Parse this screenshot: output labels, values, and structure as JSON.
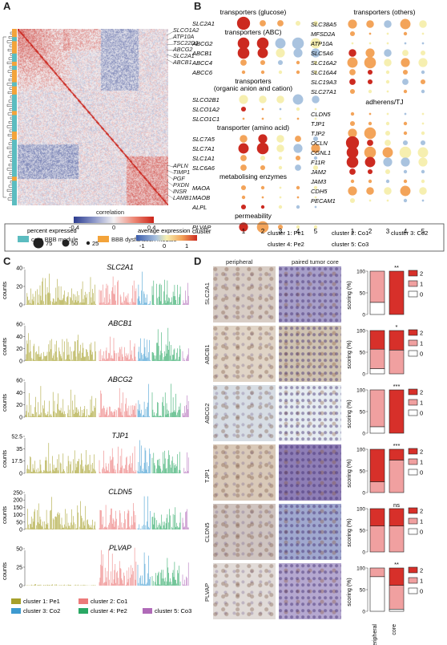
{
  "panels": {
    "a": "A",
    "b": "B",
    "c": "C",
    "d": "D"
  },
  "heatmap": {
    "top_genes": [
      "SLCO1A2",
      "ATP10A",
      "TSC22D1",
      "ABCG2",
      "SLC2A1",
      "ABCB1"
    ],
    "bottom_genes": [
      "APLN",
      "TIMP1",
      "PGF",
      "PXDN",
      "INSR",
      "LAMB1"
    ],
    "colorbar_title": "correlation",
    "colorbar_ticks": [
      "-0.4",
      "0",
      "0.4"
    ],
    "modules": [
      {
        "label": "core BBB module",
        "color": "#5bbcc0"
      },
      {
        "label": "BBB dysfunction module",
        "color": "#f3a33a"
      }
    ]
  },
  "dotplot": {
    "clusters_axis_label": "cluster",
    "cluster_numbers": [
      "1",
      "2",
      "3",
      "4",
      "5"
    ],
    "left_groups": [
      {
        "title": "transporters (glucose)",
        "genes": [
          "SLC2A1"
        ]
      },
      {
        "title": "transporters (ABC)",
        "genes": [
          "ABCG2",
          "ABCB1",
          "ABCC4",
          "ABCC6"
        ]
      },
      {
        "title": "transporters\n(organic anion and cation)",
        "genes": [
          "SLCO2B1",
          "SLCO1A2",
          "SLCO1C1"
        ]
      },
      {
        "title": "transporter (amino acid)",
        "genes": [
          "SLC7A5",
          "SLC7A1",
          "SLC1A1",
          "SLC6A6"
        ]
      },
      {
        "title": "metabolising enzymes",
        "genes": [
          "MAOA",
          "MAOB",
          "ALPL"
        ]
      },
      {
        "title": "permeability",
        "genes": [
          "PLVAP"
        ]
      }
    ],
    "right_groups": [
      {
        "title": "transporters (others)",
        "genes": [
          "SLC38A5",
          "MFSD2A",
          "ATP10A",
          "SLC5A6",
          "SLC16A2",
          "SLC16A4",
          "SLC19A3",
          "SLC27A1"
        ]
      },
      {
        "title": "adherens/TJ",
        "genes": [
          "CLDN5",
          "TJP1",
          "TJP2",
          "OCLN",
          "CGNL1",
          "F11R",
          "JAM2",
          "JAM3",
          "CDH5",
          "PECAM1"
        ]
      }
    ],
    "size_legend_title": "percent expressed",
    "size_legend_values": [
      "75",
      "50",
      "25"
    ],
    "color_legend_title": "average expression",
    "color_legend_ticks": [
      "-1",
      "0",
      "1"
    ],
    "cluster_names": [
      "cluster 1: Pe1",
      "cluster 2: Co1",
      "cluster 3: Co2",
      "cluster 4: Pe2",
      "cluster 5: Co3"
    ]
  },
  "bars": {
    "ylabel": "counts",
    "panels": [
      {
        "gene": "SLC2A1",
        "ticks": [
          "0",
          "20",
          "40"
        ]
      },
      {
        "gene": "ABCB1",
        "ticks": [
          "0",
          "20",
          "40",
          "60"
        ]
      },
      {
        "gene": "ABCG2",
        "ticks": [
          "0",
          "20",
          "40",
          "60"
        ]
      },
      {
        "gene": "TJP1",
        "ticks": [
          "0",
          "17.5",
          "35",
          "52.5"
        ]
      },
      {
        "gene": "CLDN5",
        "ticks": [
          "0",
          "50",
          "100",
          "150",
          "200",
          "250"
        ]
      },
      {
        "gene": "PLVAP",
        "ticks": [
          "0",
          "25",
          "50"
        ]
      }
    ],
    "legend": [
      {
        "label": "cluster 1: Pe1",
        "color": "#a6a02b"
      },
      {
        "label": "cluster 2: Co1",
        "color": "#ec7a7a"
      },
      {
        "label": "cluster 3: Co2",
        "color": "#3d9ad0"
      },
      {
        "label": "cluster 4: Pe2",
        "color": "#2aa864"
      },
      {
        "label": "cluster 5: Co3",
        "color": "#b06ab8"
      }
    ]
  },
  "ihc": {
    "col_peripheral": "peripheral",
    "col_core": "paired tumor core",
    "rows": [
      {
        "gene": "SLC2A1",
        "sig": "**",
        "peripheral": [
          0.28,
          0.72,
          0.0
        ],
        "core": [
          0.0,
          0.0,
          1.0
        ]
      },
      {
        "gene": "ABCB1",
        "sig": "*",
        "peripheral": [
          0.12,
          0.45,
          0.43
        ],
        "core": [
          0.0,
          0.55,
          0.45
        ]
      },
      {
        "gene": "ABCG2",
        "sig": "***",
        "peripheral": [
          0.15,
          0.85,
          0.0
        ],
        "core": [
          0.0,
          0.0,
          1.0
        ]
      },
      {
        "gene": "TJP1",
        "sig": "***",
        "peripheral": [
          0.0,
          0.25,
          0.75
        ],
        "core": [
          0.0,
          0.75,
          0.25
        ]
      },
      {
        "gene": "CLDN5",
        "sig": "ns",
        "peripheral": [
          0.0,
          0.6,
          0.4
        ],
        "core": [
          0.0,
          0.6,
          0.4
        ]
      },
      {
        "gene": "PLVAP",
        "sig": "**",
        "peripheral": [
          0.8,
          0.2,
          0.0
        ],
        "core": [
          0.05,
          0.55,
          0.4
        ]
      }
    ],
    "score_labels": [
      "2",
      "1",
      "0"
    ],
    "ylabel": "scoring (%)",
    "yticks": [
      "0",
      "50",
      "100"
    ],
    "xlabels": [
      "peripheral",
      "core"
    ],
    "score_colors": [
      "#ffffff",
      "#f0a0a0",
      "#d7302a"
    ]
  }
}
